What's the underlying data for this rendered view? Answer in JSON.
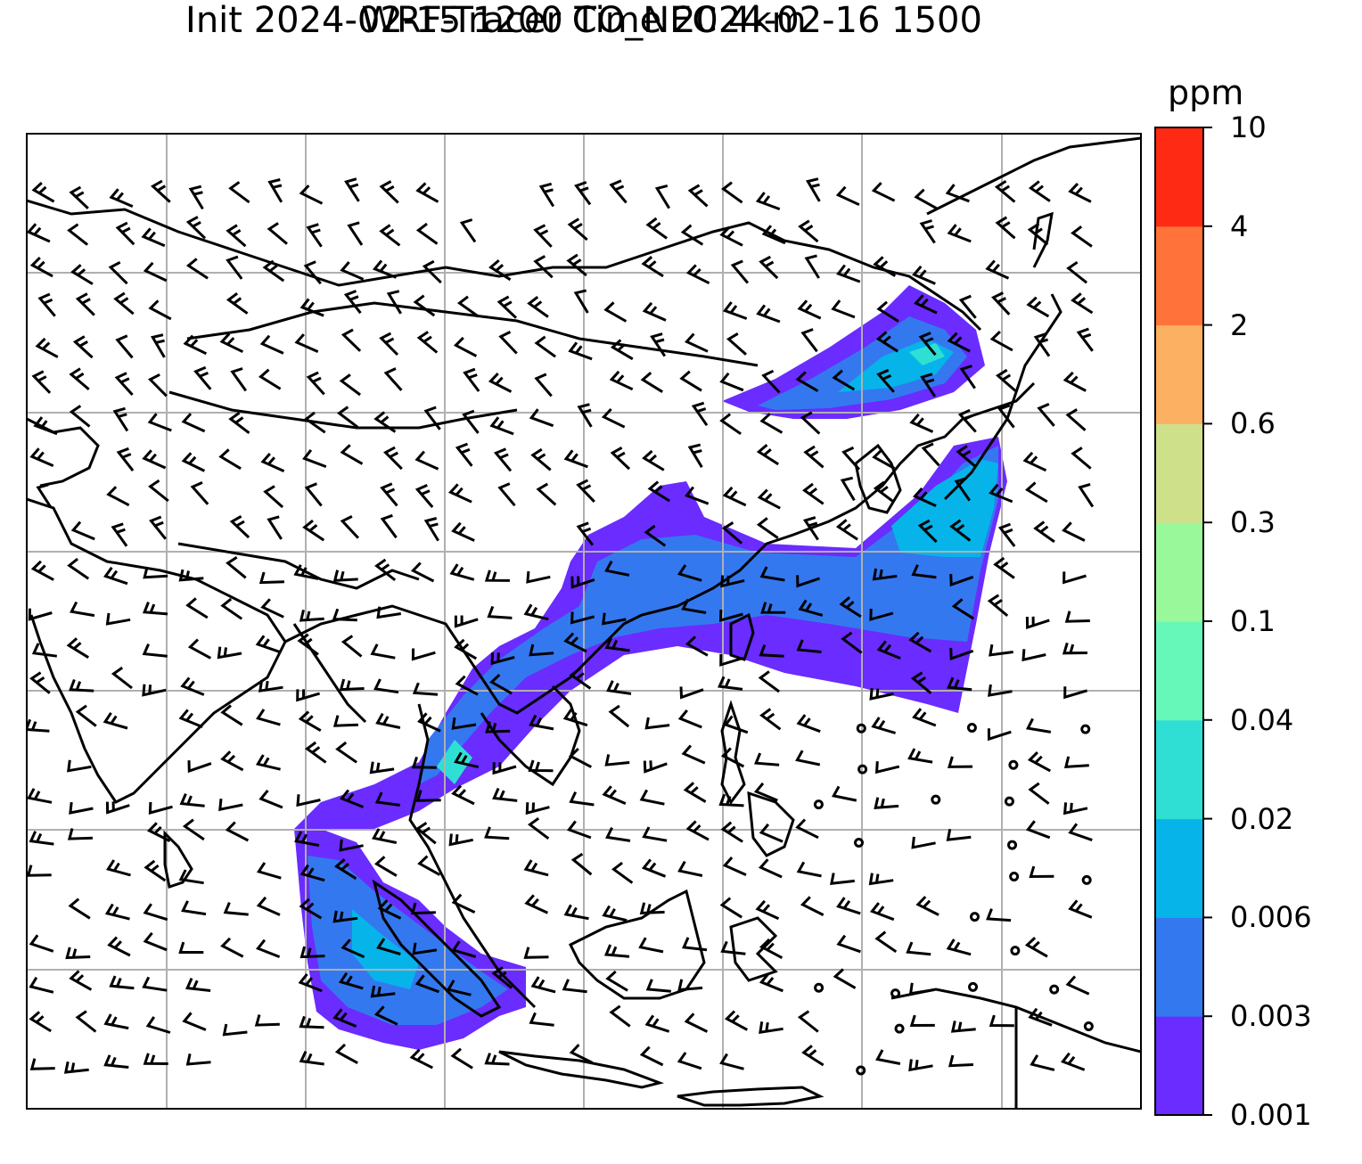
{
  "title": {
    "line1": "WRF-Tracer CO_NEC 4km",
    "line2": "Init 2024-02-15 1200 Time 2024-02-16 1500"
  },
  "colorbar": {
    "unit": "ppm",
    "levels": [
      {
        "label": "0.001",
        "color": "#6a2cff"
      },
      {
        "label": "0.003",
        "color": "#3478f0"
      },
      {
        "label": "0.006",
        "color": "#06b4ea"
      },
      {
        "label": "0.02",
        "color": "#2fdfd3"
      },
      {
        "label": "0.04",
        "color": "#66f8b9"
      },
      {
        "label": "0.1",
        "color": "#99f899"
      },
      {
        "label": "0.3",
        "color": "#cfe08a"
      },
      {
        "label": "0.6",
        "color": "#fcb062"
      },
      {
        "label": "2",
        "color": "#ff733b"
      },
      {
        "label": "4",
        "color": "#ff2a14"
      },
      {
        "label": "10",
        "color": null
      }
    ]
  },
  "map": {
    "field": "CO_NEC tracer concentration",
    "gridlines": true,
    "overlay": "wind barbs"
  }
}
